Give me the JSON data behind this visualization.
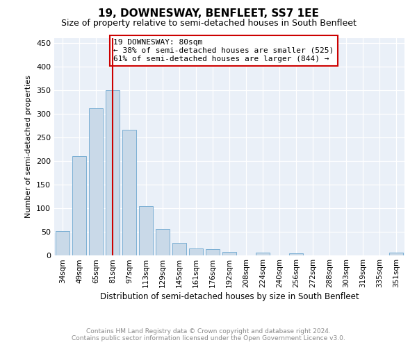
{
  "title": "19, DOWNESWAY, BENFLEET, SS7 1EE",
  "subtitle": "Size of property relative to semi-detached houses in South Benfleet",
  "xlabel": "Distribution of semi-detached houses by size in South Benfleet",
  "ylabel": "Number of semi-detached properties",
  "categories": [
    "34sqm",
    "49sqm",
    "65sqm",
    "81sqm",
    "97sqm",
    "113sqm",
    "129sqm",
    "145sqm",
    "161sqm",
    "176sqm",
    "192sqm",
    "208sqm",
    "224sqm",
    "240sqm",
    "256sqm",
    "272sqm",
    "288sqm",
    "303sqm",
    "319sqm",
    "335sqm",
    "351sqm"
  ],
  "values": [
    51,
    210,
    312,
    350,
    265,
    104,
    55,
    26,
    14,
    12,
    6,
    0,
    5,
    0,
    4,
    0,
    0,
    0,
    0,
    0,
    5
  ],
  "bar_color": "#c9d9e8",
  "bar_edge_color": "#7bafd4",
  "vline_idx": 3,
  "vline_color": "#cc0000",
  "annotation_text": "19 DOWNESWAY: 80sqm\n← 38% of semi-detached houses are smaller (525)\n61% of semi-detached houses are larger (844) →",
  "annotation_box_color": "white",
  "annotation_box_edge": "#cc0000",
  "ylim": [
    0,
    460
  ],
  "yticks": [
    0,
    50,
    100,
    150,
    200,
    250,
    300,
    350,
    400,
    450
  ],
  "footer": "Contains HM Land Registry data © Crown copyright and database right 2024.\nContains public sector information licensed under the Open Government Licence v3.0.",
  "plot_background": "#eaf0f8",
  "title_fontsize": 11,
  "subtitle_fontsize": 9
}
